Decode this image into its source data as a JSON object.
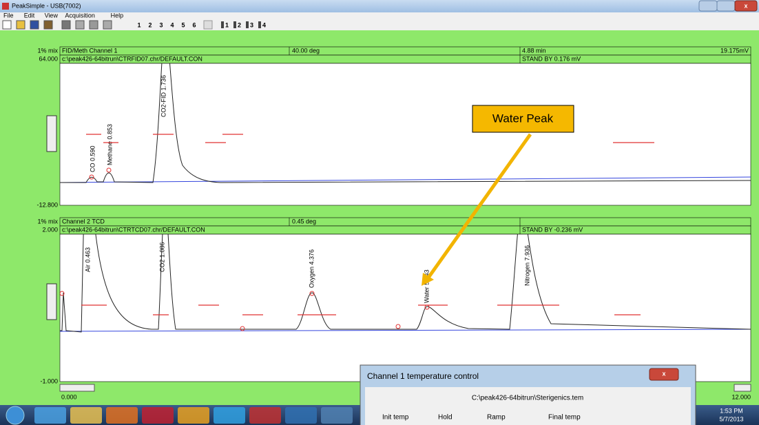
{
  "window": {
    "title": "PeakSimple - USB(7002)",
    "menu": [
      "File",
      "Edit",
      "View",
      "Acquisition",
      "Help"
    ],
    "toolbar_numbers": [
      "1",
      "2",
      "3",
      "4",
      "5",
      "6"
    ],
    "channel_buttons": [
      "1",
      "2",
      "3",
      "4"
    ]
  },
  "panels": [
    {
      "mix": "1% mix",
      "channel": "FID/Meth Channel 1",
      "temp": "40.00 deg",
      "time": "4.88 min",
      "signal": "19.175mV",
      "ymax": "64.000",
      "file": "c:\\peak426-64bitrun\\CTRFID07.chr/DEFAULT.CON",
      "status": "STAND BY 0.176 mV",
      "ymin": "-12.800",
      "peaks": [
        "CO 0.590",
        "Methane 0.853",
        "CO2-FID 1.736"
      ]
    },
    {
      "mix": "1% mix",
      "channel": "Channel 2 TCD",
      "temp": "0.45 deg",
      "ymax": "2.000",
      "file": "c:\\peak426-64bitrun\\CTRTCD07.chr/DEFAULT.CON",
      "status": "STAND BY -0.236 mV",
      "ymin": "-1.000",
      "peaks": [
        "Air 0.463",
        "CO2 1.086",
        "Oxygen 4.376",
        "Water 5.943",
        "Nitrogen 7.936"
      ]
    }
  ],
  "x_axis": {
    "start": "0.000",
    "end": "12.000"
  },
  "annotation": "Water Peak",
  "dialog": {
    "title": "Channel 1 temperature control",
    "file": "C:\\peak426-64bitrun\\Sterigenics.tem",
    "columns": [
      "Init temp",
      "Hold",
      "Ramp",
      "Final temp"
    ]
  },
  "taskbar": {
    "time": "1:53 PM",
    "date": "5/7/2013"
  }
}
